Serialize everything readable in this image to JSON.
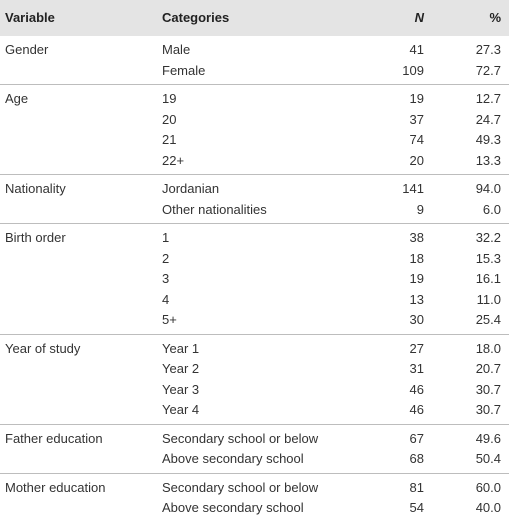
{
  "header": [
    "Variable",
    "Categories",
    "N",
    "%"
  ],
  "groups": [
    {
      "variable": "Gender",
      "rows": [
        [
          "Male",
          "41",
          "27.3"
        ],
        [
          "Female",
          "109",
          "72.7"
        ]
      ]
    },
    {
      "variable": "Age",
      "rows": [
        [
          "19",
          "19",
          "12.7"
        ],
        [
          "20",
          "37",
          "24.7"
        ],
        [
          "21",
          "74",
          "49.3"
        ],
        [
          "22+",
          "20",
          "13.3"
        ]
      ]
    },
    {
      "variable": "Nationality",
      "rows": [
        [
          "Jordanian",
          "141",
          "94.0"
        ],
        [
          "Other nationalities",
          "9",
          "6.0"
        ]
      ]
    },
    {
      "variable": "Birth order",
      "rows": [
        [
          "1",
          "38",
          "32.2"
        ],
        [
          "2",
          "18",
          "15.3"
        ],
        [
          "3",
          "19",
          "16.1"
        ],
        [
          "4",
          "13",
          "11.0"
        ],
        [
          "5+",
          "30",
          "25.4"
        ]
      ]
    },
    {
      "variable": "Year of study",
      "rows": [
        [
          "Year 1",
          "27",
          "18.0"
        ],
        [
          "Year 2",
          "31",
          "20.7"
        ],
        [
          "Year 3",
          "46",
          "30.7"
        ],
        [
          "Year 4",
          "46",
          "30.7"
        ]
      ]
    },
    {
      "variable": "Father education",
      "rows": [
        [
          "Secondary school or below",
          "67",
          "49.6"
        ],
        [
          "Above secondary school",
          "68",
          "50.4"
        ]
      ]
    },
    {
      "variable": "Mother education",
      "rows": [
        [
          "Secondary school or below",
          "81",
          "60.0"
        ],
        [
          "Above secondary school",
          "54",
          "40.0"
        ]
      ]
    }
  ]
}
